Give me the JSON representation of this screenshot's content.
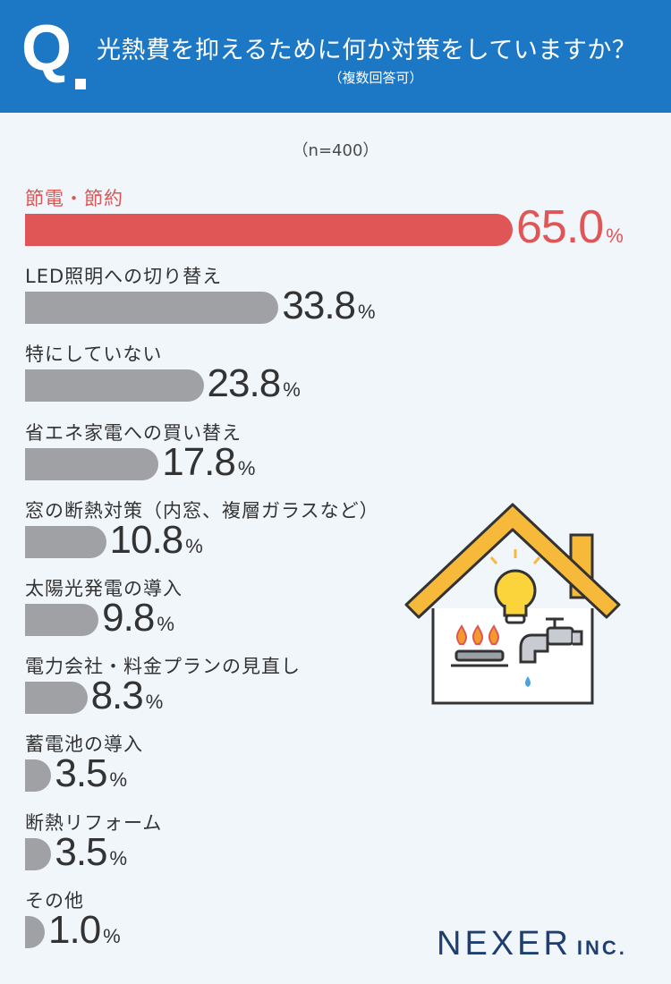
{
  "header": {
    "q": "Q",
    "title": "光熱費を抑えるために何か対策をしていますか？",
    "subtitle": "（複数回答可）"
  },
  "n_label": "（n=400）",
  "unit": "%",
  "brand": {
    "name": "NEXER",
    "suffix": "INC."
  },
  "colors": {
    "header_bg": "#1c78c5",
    "highlight": "#e05555",
    "bar": "#a0a1a5",
    "brand": "#1f3f70"
  },
  "icons": [
    "house-illustration-icon",
    "light-bulb-icon",
    "gas-stove-icon",
    "faucet-icon"
  ],
  "chart_data": {
    "type": "bar",
    "orientation": "horizontal",
    "title": "光熱費を抑えるために何か対策をしていますか？",
    "categories": [
      "節電・節約",
      "LED照明への切り替え",
      "特にしていない",
      "省エネ家電への買い替え",
      "窓の断熱対策（内窓、複層ガラスなど）",
      "太陽光発電の導入",
      "電力会社・料金プランの見直し",
      "蓄電池の導入",
      "断熱リフォーム",
      "その他"
    ],
    "values": [
      65.0,
      33.8,
      23.8,
      17.8,
      10.8,
      9.8,
      8.3,
      3.5,
      3.5,
      1.0
    ],
    "value_labels": [
      "65.0",
      "33.8",
      "23.8",
      "17.8",
      "10.8",
      "9.8",
      "8.3",
      "3.5",
      "3.5",
      "1.0"
    ],
    "highlight_index": 0,
    "xlim": [
      0,
      100
    ],
    "grid": false
  }
}
